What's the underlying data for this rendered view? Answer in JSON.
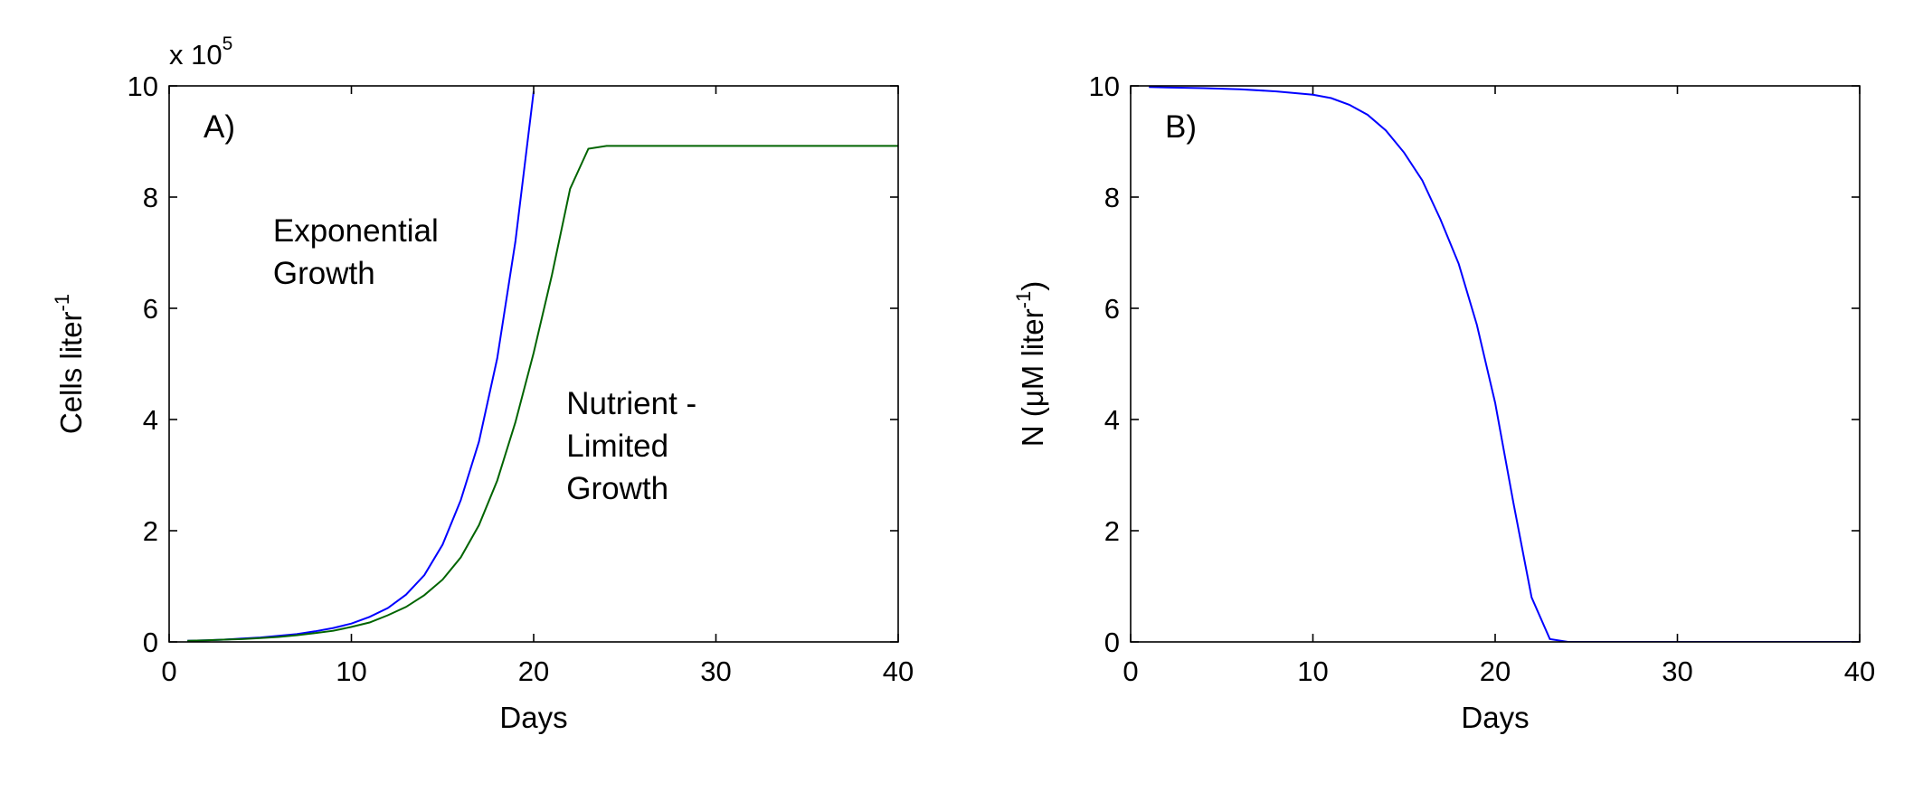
{
  "chart_data": [
    {
      "type": "line",
      "panel_label": "A)",
      "xlabel": "Days",
      "ylabel": "Cells liter",
      "ylabel_superscript": "-1",
      "y_multiplier": "x 10",
      "y_multiplier_exponent": "5",
      "xlim": [
        0,
        40
      ],
      "ylim": [
        0,
        10
      ],
      "xticks": [
        0,
        10,
        20,
        30,
        40
      ],
      "yticks": [
        0,
        2,
        4,
        6,
        8,
        10
      ],
      "grid": false,
      "annotations": [
        {
          "lines": [
            "Exponential",
            "Growth"
          ],
          "x": 5.7,
          "y": 7.2
        },
        {
          "lines": [
            "Nutrient -",
            "Limited",
            "Growth"
          ],
          "x": 21.8,
          "y": 4.1
        }
      ],
      "series": [
        {
          "color": "#0000ff",
          "x": [
            1,
            2,
            3,
            4,
            5,
            6,
            7,
            8,
            9,
            10,
            11,
            12,
            13,
            14,
            15,
            16,
            17,
            18,
            19,
            20
          ],
          "y": [
            0.02,
            0.03,
            0.04,
            0.06,
            0.08,
            0.11,
            0.14,
            0.19,
            0.25,
            0.33,
            0.45,
            0.61,
            0.85,
            1.2,
            1.75,
            2.55,
            3.6,
            5.1,
            7.2,
            9.9
          ]
        },
        {
          "color": "#006400",
          "x": [
            1,
            2,
            3,
            4,
            5,
            6,
            7,
            8,
            9,
            10,
            11,
            12,
            13,
            14,
            15,
            16,
            17,
            18,
            19,
            20,
            21,
            22,
            23,
            24,
            30,
            40
          ],
          "y": [
            0.02,
            0.03,
            0.04,
            0.05,
            0.07,
            0.09,
            0.12,
            0.16,
            0.2,
            0.27,
            0.35,
            0.48,
            0.63,
            0.84,
            1.12,
            1.52,
            2.1,
            2.9,
            3.95,
            5.2,
            6.6,
            8.15,
            8.87,
            8.92,
            8.92,
            8.92
          ]
        }
      ]
    },
    {
      "type": "line",
      "panel_label": "B)",
      "xlabel": "Days",
      "ylabel": "N (μM liter",
      "ylabel_superscript": "-1",
      "ylabel_close": ")",
      "xlim": [
        0,
        40
      ],
      "ylim": [
        0,
        10
      ],
      "xticks": [
        0,
        10,
        20,
        30,
        40
      ],
      "yticks": [
        0,
        2,
        4,
        6,
        8,
        10
      ],
      "grid": false,
      "series": [
        {
          "color": "#0000ff",
          "x": [
            1,
            2,
            4,
            6,
            8,
            10,
            11,
            12,
            13,
            14,
            15,
            16,
            17,
            18,
            19,
            20,
            21,
            22,
            23,
            24,
            30,
            40
          ],
          "y": [
            9.98,
            9.97,
            9.96,
            9.94,
            9.9,
            9.84,
            9.78,
            9.66,
            9.48,
            9.2,
            8.8,
            8.3,
            7.6,
            6.8,
            5.7,
            4.3,
            2.5,
            0.8,
            0.05,
            0.0,
            0.0,
            0.0
          ]
        }
      ]
    }
  ]
}
